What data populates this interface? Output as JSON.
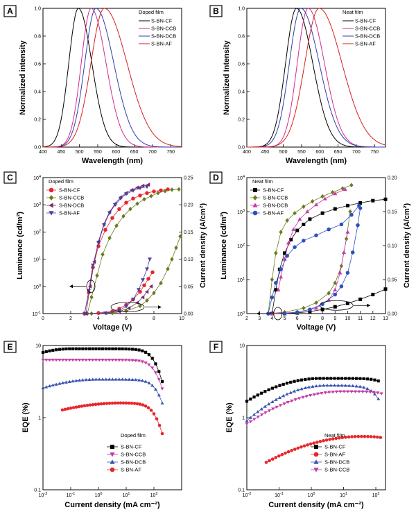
{
  "chart_data": [
    {
      "panel": "A",
      "type": "line",
      "xlabel": "Wavelength (nm)",
      "ylabel": "Normalized intensity",
      "xlim": [
        400,
        780
      ],
      "ylim": [
        0,
        1.0
      ],
      "xticks": [
        400,
        450,
        500,
        550,
        600,
        650,
        700,
        750
      ],
      "yticks": [
        0.0,
        0.2,
        0.4,
        0.6,
        0.8,
        1.0
      ],
      "grid": false,
      "legend_title": "Doped film",
      "legend_position": "top-right",
      "series": [
        {
          "name": "S-BN-CF",
          "color": "#000000",
          "peak": 497,
          "fwhm": 62,
          "red_tail": 1.4
        },
        {
          "name": "S-BN-CCB",
          "color": "#d42a8a",
          "peak": 532,
          "fwhm": 64,
          "red_tail": 1.5
        },
        {
          "name": "S-BN-DCB",
          "color": "#2b3fa8",
          "peak": 545,
          "fwhm": 72,
          "red_tail": 1.6
        },
        {
          "name": "S-BN-AF",
          "color": "#d81e1e",
          "peak": 568,
          "fwhm": 86,
          "red_tail": 1.7
        }
      ]
    },
    {
      "panel": "B",
      "type": "line",
      "xlabel": "Wavelength (nm)",
      "ylabel": "Normalized Intensity",
      "xlim": [
        400,
        780
      ],
      "ylim": [
        0,
        1.0
      ],
      "xticks": [
        400,
        450,
        500,
        550,
        600,
        650,
        700,
        750
      ],
      "yticks": [
        0.0,
        0.2,
        0.4,
        0.6,
        0.8,
        1.0
      ],
      "grid": false,
      "legend_title": "Neat film",
      "legend_position": "top-right",
      "series": [
        {
          "name": "S-BN-CF",
          "color": "#000000",
          "peak": 536,
          "fwhm": 70,
          "red_tail": 1.5
        },
        {
          "name": "S-BN-CCB",
          "color": "#d42a8a",
          "peak": 568,
          "fwhm": 70,
          "red_tail": 1.5
        },
        {
          "name": "S-BN-DCB",
          "color": "#2b3fa8",
          "peak": 548,
          "fwhm": 74,
          "red_tail": 1.6
        },
        {
          "name": "S-BN-AF",
          "color": "#d81e1e",
          "peak": 598,
          "fwhm": 92,
          "red_tail": 1.6
        }
      ]
    },
    {
      "panel": "C",
      "type": "scatter",
      "xlabel": "Voltage (V)",
      "ylabel": "Luminance (cd/m²)",
      "y2label": "Current density (A/cm²)",
      "xlim": [
        0,
        10
      ],
      "ylim_log": [
        -1,
        4
      ],
      "y2lim": [
        0,
        0.25
      ],
      "xticks": [
        0,
        2,
        4,
        6,
        8,
        10
      ],
      "yticks_exp": [
        -1,
        0,
        1,
        2,
        3,
        4
      ],
      "y2ticks": [
        0.0,
        0.05,
        0.1,
        0.15,
        0.2,
        0.25
      ],
      "legend_title": "Doped film",
      "legend_position": "top-left",
      "series": [
        {
          "name": "S-BN-CF",
          "color": "#e8262b",
          "marker": "circle",
          "lum_v": [
            3.0,
            3.3,
            3.6,
            4.0,
            4.5,
            5.0,
            5.5,
            6.0,
            6.5,
            7.0,
            7.5,
            8.0,
            8.5,
            9.0
          ],
          "lum": [
            0.1,
            0.6,
            5,
            30,
            120,
            330,
            700,
            1200,
            1700,
            2200,
            2700,
            3100,
            3400,
            3700
          ],
          "cd_v": [
            3.0,
            4.0,
            5.0,
            5.5,
            6.0,
            6.5,
            7.0,
            7.3,
            7.6,
            7.9
          ],
          "cd": [
            0.0,
            0.001,
            0.004,
            0.009,
            0.016,
            0.026,
            0.04,
            0.052,
            0.064,
            0.076
          ]
        },
        {
          "name": "S-BN-CCB",
          "color": "#6b7a1e",
          "marker": "diamond",
          "lum_v": [
            3.2,
            3.5,
            3.9,
            4.3,
            4.8,
            5.3,
            5.8,
            6.3,
            6.8,
            7.3,
            7.8,
            8.3,
            8.8,
            9.3,
            9.8
          ],
          "lum": [
            0.1,
            0.4,
            2.5,
            15,
            60,
            170,
            380,
            700,
            1100,
            1600,
            2100,
            2700,
            3200,
            3600,
            3700
          ],
          "cd_v": [
            3.5,
            5.0,
            6.0,
            7.0,
            7.5,
            8.0,
            8.5,
            9.0,
            9.3,
            9.6,
            9.9
          ],
          "cd": [
            0.0,
            0.001,
            0.005,
            0.014,
            0.024,
            0.038,
            0.056,
            0.082,
            0.1,
            0.121,
            0.142
          ]
        },
        {
          "name": "S-BN-DCB",
          "color": "#7a2a6a",
          "marker": "triangle-left",
          "lum_v": [
            3.1,
            3.4,
            3.7,
            4.0,
            4.4,
            4.8,
            5.2,
            5.6,
            6.0,
            6.4,
            6.8,
            7.2,
            7.6
          ],
          "lum": [
            0.1,
            1,
            8,
            45,
            200,
            550,
            1100,
            1900,
            2700,
            3500,
            4300,
            5000,
            5500
          ],
          "cd_v": [
            3.1,
            4.5,
            5.5,
            6.2,
            6.8,
            7.2,
            7.5,
            7.8
          ],
          "cd": [
            0.0,
            0.001,
            0.004,
            0.01,
            0.02,
            0.03,
            0.04,
            0.05
          ]
        },
        {
          "name": "S-BN-AF",
          "color": "#4a3fa0",
          "marker": "triangle-down",
          "lum_v": [
            3.0,
            3.3,
            3.6,
            4.0,
            4.4,
            4.8,
            5.2,
            5.6,
            6.0,
            6.5,
            7.0,
            7.5
          ],
          "lum": [
            0.1,
            0.7,
            6,
            40,
            180,
            500,
            1000,
            1700,
            2500,
            3300,
            4100,
            4600
          ],
          "cd_v": [
            3.0,
            4.5,
            5.5,
            6.0,
            6.5,
            6.9,
            7.2,
            7.5,
            7.7
          ],
          "cd": [
            0.0,
            0.001,
            0.006,
            0.013,
            0.026,
            0.044,
            0.062,
            0.082,
            0.1
          ]
        }
      ]
    },
    {
      "panel": "D",
      "type": "scatter",
      "xlabel": "Voltage (V)",
      "ylabel": "Luminance (cd/m²)",
      "y2label": "Current density (A/cm²)",
      "xlim": [
        2,
        13
      ],
      "ylim_log": [
        0,
        4
      ],
      "y2lim": [
        0,
        0.2
      ],
      "xticks": [
        2,
        3,
        4,
        5,
        6,
        7,
        8,
        9,
        10,
        11,
        12,
        13
      ],
      "yticks_exp": [
        0,
        1,
        2,
        3,
        4
      ],
      "y2ticks": [
        0.0,
        0.05,
        0.1,
        0.15,
        0.2
      ],
      "legend_title": "Neat film",
      "legend_position": "top-left",
      "series": [
        {
          "name": "S-BN-CF",
          "color": "#000000",
          "marker": "square",
          "lum_v": [
            4.0,
            4.3,
            4.6,
            5.0,
            5.5,
            6.0,
            6.5,
            7.0,
            8.0,
            9.0,
            10.0,
            11.0,
            12.0,
            13.0
          ],
          "lum": [
            1,
            5,
            20,
            60,
            150,
            280,
            420,
            600,
            900,
            1200,
            1500,
            1800,
            2100,
            2300
          ],
          "cd_v": [
            5.0,
            6.0,
            7.0,
            8.0,
            9.0,
            10.0,
            11.0,
            12.0,
            13.0
          ],
          "cd": [
            0.0,
            0.001,
            0.003,
            0.006,
            0.01,
            0.015,
            0.021,
            0.028,
            0.036
          ]
        },
        {
          "name": "S-BN-CCB",
          "color": "#6b7a1e",
          "marker": "diamond",
          "lum_v": [
            3.7,
            4.0,
            4.3,
            4.7,
            5.2,
            5.8,
            6.5,
            7.2,
            8.0,
            8.8,
            9.6,
            10.3
          ],
          "lum": [
            1,
            10,
            60,
            250,
            550,
            900,
            1400,
            2000,
            2800,
            3700,
            4800,
            6000
          ],
          "cd_v": [
            3.7,
            5.0,
            6.5,
            7.5,
            8.5,
            9.0,
            9.5,
            9.9,
            10.2
          ],
          "cd": [
            0.0,
            0.002,
            0.008,
            0.016,
            0.03,
            0.045,
            0.07,
            0.11,
            0.15
          ]
        },
        {
          "name": "S-BN-DCB",
          "color": "#c43aa7",
          "marker": "triangle-up",
          "lum_v": [
            4.5,
            4.7,
            5.0,
            5.3,
            5.7,
            6.2,
            6.8,
            7.5,
            8.2,
            9.0,
            9.8
          ],
          "lum": [
            5,
            12,
            40,
            120,
            300,
            600,
            1000,
            1600,
            2400,
            3400,
            4500
          ],
          "cd_v": [
            4.0,
            6.0,
            7.5,
            8.5,
            9.0,
            9.4,
            9.7,
            10.0
          ],
          "cd": [
            0.0,
            0.002,
            0.008,
            0.02,
            0.035,
            0.06,
            0.09,
            0.12
          ]
        },
        {
          "name": "S-BN-AF",
          "color": "#2c4fc0",
          "marker": "circle",
          "lum_v": [
            3.7,
            4.0,
            4.3,
            4.7,
            5.2,
            5.8,
            6.5,
            7.5,
            8.5,
            9.5,
            10.3,
            10.9
          ],
          "lum": [
            1,
            3,
            8,
            20,
            50,
            90,
            140,
            200,
            300,
            420,
            800,
            1500
          ],
          "cd_v": [
            5.0,
            6.0,
            7.0,
            8.0,
            9.0,
            9.5,
            10.0,
            10.4,
            10.8,
            11.0
          ],
          "cd": [
            0.0,
            0.002,
            0.006,
            0.014,
            0.028,
            0.04,
            0.06,
            0.09,
            0.13,
            0.155
          ]
        }
      ]
    },
    {
      "panel": "E",
      "type": "scatter",
      "xlabel": "Current density (mA cm⁻²)",
      "ylabel": "EQE (%)",
      "xlim_log": [
        -2,
        3
      ],
      "ylim_log": [
        -1,
        1
      ],
      "xticks_exp": [
        -2,
        -1,
        0,
        1,
        2
      ],
      "yticks": [
        0.1,
        1,
        10
      ],
      "legend_title": "Doped film",
      "legend_position": "bottom-right",
      "series": [
        {
          "name": "S-BN-CF",
          "color": "#000000",
          "marker": "square",
          "x_range": [
            0.01,
            200
          ],
          "peak": 9.0,
          "peak_x": 0.1,
          "low_slope": 0.05,
          "rolloff": 180
        },
        {
          "name": "S-BN-CCB",
          "color": "#c43aa7",
          "marker": "triangle-down",
          "x_range": [
            0.01,
            200
          ],
          "peak": 6.3,
          "peak_x": 0.02,
          "low_slope": 0.0,
          "rolloff": 200
        },
        {
          "name": "S-BN-DCB",
          "color": "#3a55b0",
          "marker": "triangle-up",
          "x_range": [
            0.01,
            200
          ],
          "peak": 3.4,
          "peak_x": 1.0,
          "low_slope": 0.03,
          "rolloff": 230
        },
        {
          "name": "S-BN-AF",
          "color": "#e8262b",
          "marker": "circle",
          "x_range": [
            0.05,
            200
          ],
          "peak": 1.6,
          "peak_x": 8.0,
          "low_slope": 0.02,
          "rolloff": 190
        }
      ]
    },
    {
      "panel": "F",
      "type": "scatter",
      "xlabel": "Current density (mA cm⁻²)",
      "ylabel": "EQE (%)",
      "xlim_log": [
        -2,
        2.3
      ],
      "ylim_log": [
        -1,
        1
      ],
      "xticks_exp": [
        -2,
        -1,
        0,
        1,
        2
      ],
      "yticks": [
        0.1,
        1,
        10
      ],
      "legend_title": "Neat film",
      "legend_position": "bottom-right",
      "series": [
        {
          "name": "S-BN-CF",
          "color": "#000000",
          "marker": "square",
          "x_range": [
            0.01,
            120
          ],
          "peak": 3.5,
          "peak_x": 2.0,
          "low_slope": 0.06,
          "rolloff": 500
        },
        {
          "name": "S-BN-AF",
          "color": "#e8262b",
          "marker": "circle",
          "x_range": [
            0.04,
            140
          ],
          "peak": 0.55,
          "peak_x": 40,
          "low_slope": 0.04,
          "rolloff": 900
        },
        {
          "name": "S-BN-DCB",
          "color": "#3a55b0",
          "marker": "triangle-up",
          "x_range": [
            0.01,
            120
          ],
          "peak": 2.8,
          "peak_x": 3.0,
          "low_slope": 0.08,
          "rolloff": 200
        },
        {
          "name": "S-BN-CCB",
          "color": "#c43aa7",
          "marker": "triangle-down",
          "x_range": [
            0.01,
            150
          ],
          "peak": 2.3,
          "peak_x": 10,
          "low_slope": 0.05,
          "rolloff": 700
        }
      ]
    }
  ]
}
